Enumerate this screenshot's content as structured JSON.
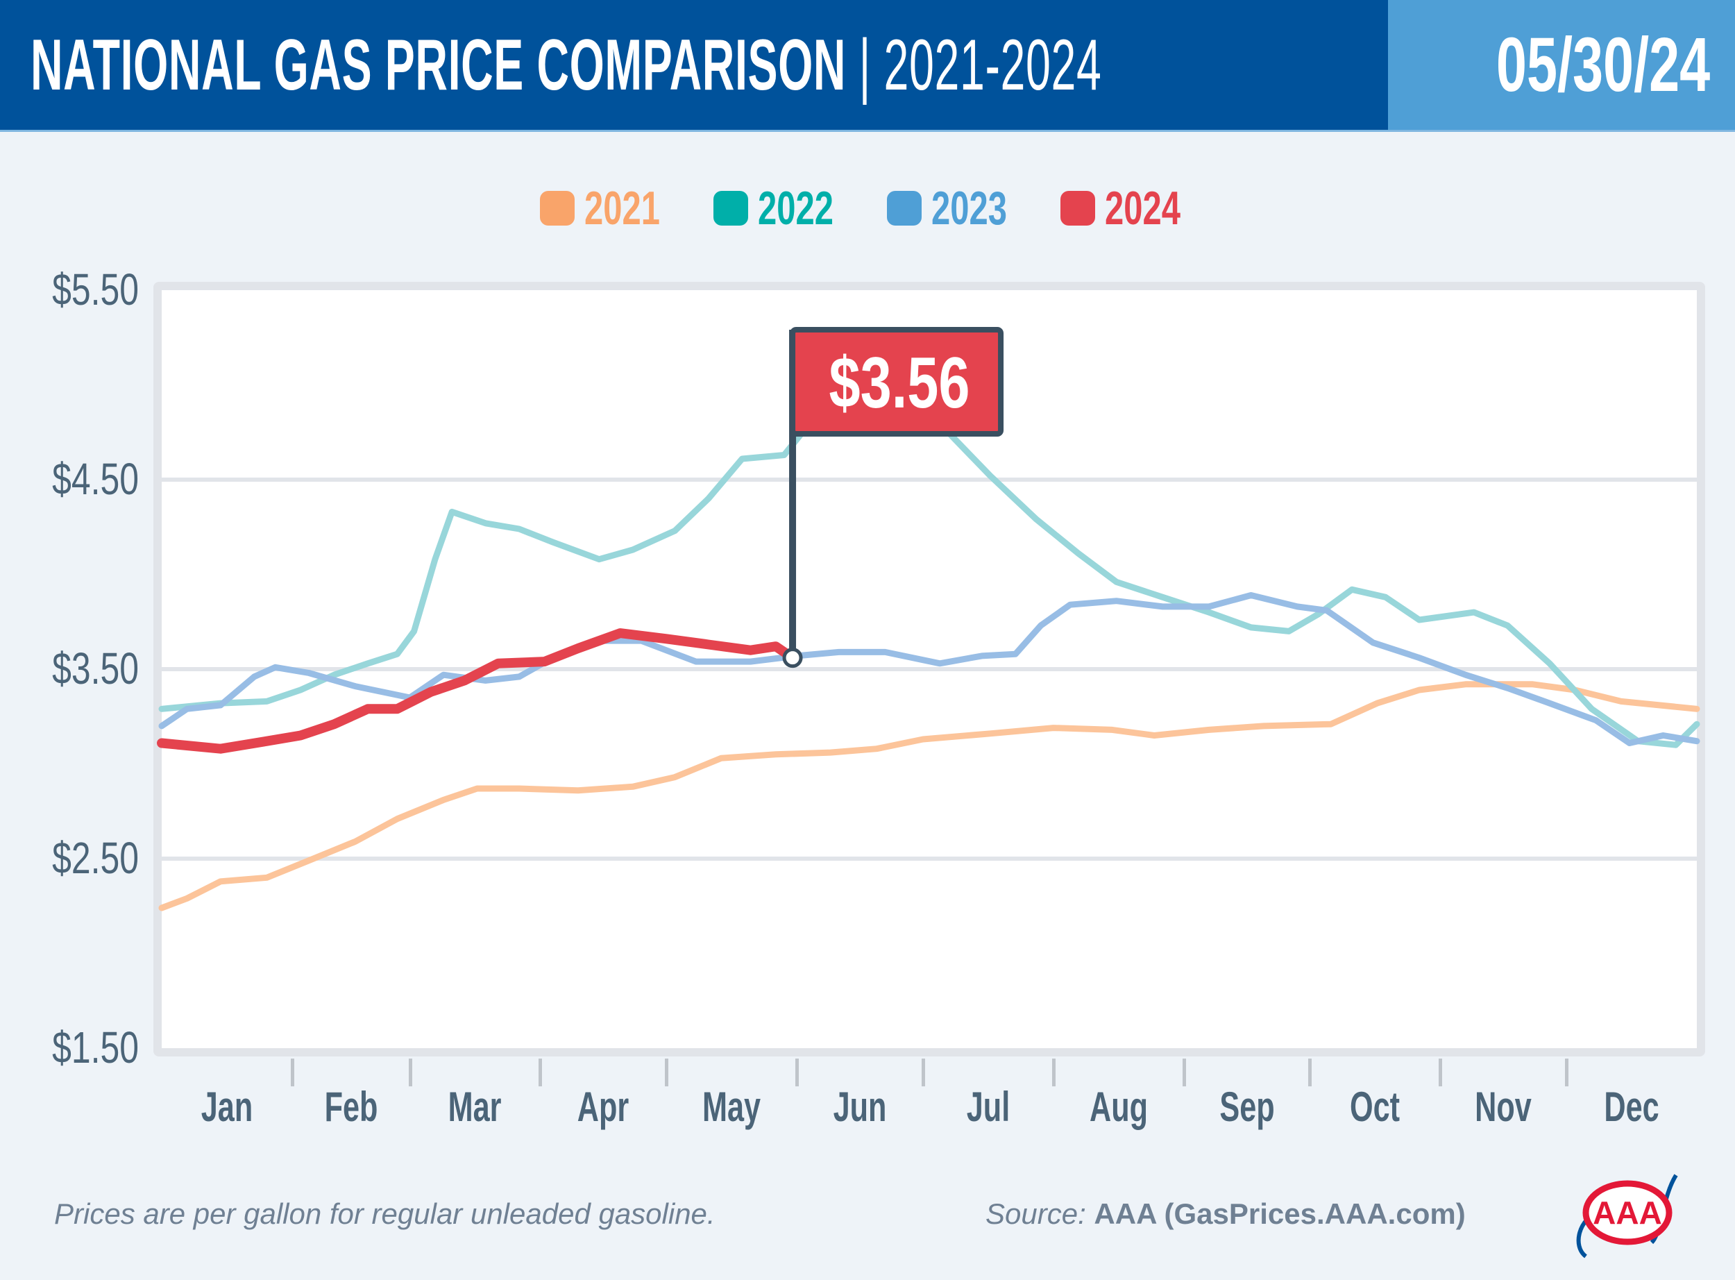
{
  "header": {
    "title_main": "NATIONAL GAS PRICE COMPARISON",
    "title_separator": " | ",
    "title_range": "2021-2024",
    "date": "05/30/24"
  },
  "colors": {
    "header_bg": "#00529B",
    "date_bg": "#4F9FD6",
    "axis_text": "#4B6478",
    "flag_bg": "#E4434E",
    "flag_pole": "#3A4F60"
  },
  "footer": {
    "note": "Prices are per gallon for regular unleaded gasoline.",
    "source_prefix": "Source: ",
    "source_name": "AAA (GasPrices.AAA.com)",
    "logo_icon": "aaa-logo-icon",
    "logo_text": "AAA"
  },
  "chart_data": {
    "type": "line",
    "title": "National Gas Price Comparison | 2021-2024",
    "xlabel": "",
    "ylabel": "",
    "x_unit": "day of year",
    "xlim": [
      0,
      365
    ],
    "ylim": [
      1.5,
      5.5
    ],
    "grid": true,
    "legend_position": "top-center",
    "y_ticks": [
      5.5,
      4.5,
      3.5,
      2.5,
      1.5
    ],
    "y_tick_labels": [
      "$5.50",
      "$4.50",
      "$3.50",
      "$2.50",
      "$1.50"
    ],
    "x_tick_labels": [
      "Jan",
      "Feb",
      "Mar",
      "Apr",
      "May",
      "Jun",
      "Jul",
      "Aug",
      "Sep",
      "Oct",
      "Nov",
      "Dec"
    ],
    "month_start_days": [
      0,
      31,
      59,
      90,
      120,
      151,
      181,
      212,
      243,
      273,
      304,
      334,
      365
    ],
    "annotation": {
      "label": "$3.56",
      "series": "2024",
      "day": 150,
      "value": 3.56
    },
    "series": [
      {
        "name": "2021",
        "color": "#F9A46A",
        "line_color": "#FCC49A",
        "x": [
          0,
          6,
          14,
          25,
          35,
          46,
          56,
          67,
          75,
          85,
          99,
          112,
          122,
          133,
          146,
          159,
          170,
          181,
          197,
          212,
          226,
          236,
          249,
          262,
          278,
          289,
          299,
          310,
          326,
          336,
          347,
          365
        ],
        "y": [
          2.24,
          2.29,
          2.38,
          2.4,
          2.49,
          2.59,
          2.71,
          2.81,
          2.87,
          2.87,
          2.86,
          2.88,
          2.93,
          3.03,
          3.05,
          3.06,
          3.08,
          3.13,
          3.16,
          3.19,
          3.18,
          3.15,
          3.18,
          3.2,
          3.21,
          3.32,
          3.39,
          3.42,
          3.42,
          3.39,
          3.33,
          3.29
        ]
      },
      {
        "name": "2022",
        "color": "#00AFA9",
        "line_color": "#98D6DA",
        "x": [
          0,
          14,
          25,
          33,
          41,
          49,
          56,
          60,
          65,
          69,
          77,
          85,
          93,
          104,
          112,
          122,
          130,
          138,
          148,
          156,
          165,
          187,
          197,
          208,
          218,
          227,
          238,
          249,
          259,
          268,
          275,
          283,
          291,
          299,
          312,
          320,
          330,
          340,
          351,
          360,
          365
        ],
        "y": [
          3.29,
          3.32,
          3.33,
          3.39,
          3.47,
          3.53,
          3.58,
          3.7,
          4.08,
          4.33,
          4.27,
          4.24,
          4.17,
          4.08,
          4.13,
          4.23,
          4.4,
          4.61,
          4.63,
          4.85,
          5.02,
          4.75,
          4.52,
          4.29,
          4.11,
          3.96,
          3.88,
          3.8,
          3.72,
          3.7,
          3.79,
          3.92,
          3.88,
          3.76,
          3.8,
          3.73,
          3.53,
          3.29,
          3.12,
          3.1,
          3.21
        ]
      },
      {
        "name": "2023",
        "color": "#4F9FD6",
        "line_color": "#98BDE5",
        "x": [
          0,
          6,
          14,
          22,
          27,
          35,
          46,
          59,
          67,
          77,
          85,
          93,
          104,
          114,
          127,
          140,
          151,
          161,
          172,
          185,
          195,
          203,
          209,
          216,
          227,
          238,
          249,
          259,
          270,
          277,
          288,
          299,
          310,
          320,
          330,
          341,
          349,
          357,
          365
        ],
        "y": [
          3.2,
          3.29,
          3.31,
          3.46,
          3.51,
          3.48,
          3.41,
          3.35,
          3.47,
          3.44,
          3.46,
          3.56,
          3.65,
          3.65,
          3.54,
          3.54,
          3.57,
          3.59,
          3.59,
          3.53,
          3.57,
          3.58,
          3.73,
          3.84,
          3.86,
          3.83,
          3.83,
          3.89,
          3.83,
          3.81,
          3.64,
          3.56,
          3.47,
          3.4,
          3.32,
          3.23,
          3.11,
          3.15,
          3.12
        ]
      },
      {
        "name": "2024",
        "color": "#E4434E",
        "line_color": "#E4434E",
        "x": [
          0,
          14,
          25,
          33,
          41,
          49,
          56,
          64,
          72,
          80,
          91,
          99,
          109,
          120,
          130,
          140,
          146,
          150
        ],
        "y": [
          3.11,
          3.08,
          3.12,
          3.15,
          3.21,
          3.29,
          3.29,
          3.38,
          3.44,
          3.53,
          3.54,
          3.61,
          3.69,
          3.66,
          3.63,
          3.6,
          3.62,
          3.56
        ]
      }
    ]
  }
}
